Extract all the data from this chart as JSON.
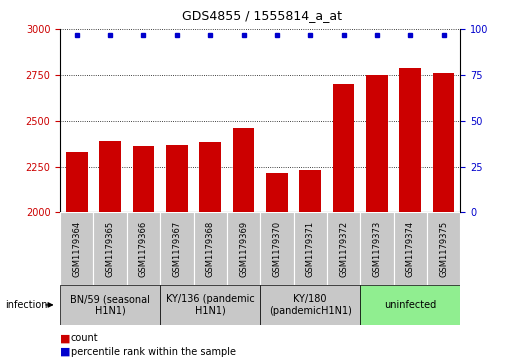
{
  "title": "GDS4855 / 1555814_a_at",
  "samples": [
    "GSM1179364",
    "GSM1179365",
    "GSM1179366",
    "GSM1179367",
    "GSM1179368",
    "GSM1179369",
    "GSM1179370",
    "GSM1179371",
    "GSM1179372",
    "GSM1179373",
    "GSM1179374",
    "GSM1179375"
  ],
  "counts": [
    2330,
    2390,
    2360,
    2370,
    2385,
    2460,
    2215,
    2230,
    2700,
    2750,
    2790,
    2760
  ],
  "percentiles": [
    100,
    100,
    100,
    100,
    100,
    100,
    100,
    100,
    100,
    100,
    100,
    100
  ],
  "ylim_left": [
    2000,
    3000
  ],
  "ylim_right": [
    0,
    100
  ],
  "yticks_left": [
    2000,
    2250,
    2500,
    2750,
    3000
  ],
  "yticks_right": [
    0,
    25,
    50,
    75,
    100
  ],
  "bar_color": "#cc0000",
  "dot_color": "#0000cc",
  "bg_color": "#ffffff",
  "groups": [
    {
      "label": "BN/59 (seasonal\nH1N1)",
      "start": 0,
      "end": 3,
      "color": "#c8c8c8"
    },
    {
      "label": "KY/136 (pandemic\nH1N1)",
      "start": 3,
      "end": 6,
      "color": "#c8c8c8"
    },
    {
      "label": "KY/180\n(pandemicH1N1)",
      "start": 6,
      "end": 9,
      "color": "#c8c8c8"
    },
    {
      "label": "uninfected",
      "start": 9,
      "end": 12,
      "color": "#90ee90"
    }
  ],
  "sample_cell_color": "#c8c8c8",
  "infection_label": "infection",
  "left_label": "count",
  "right_label": "percentile rank within the sample",
  "left_tick_color": "#cc0000",
  "right_tick_color": "#0000cc",
  "title_fontsize": 9,
  "tick_fontsize": 7,
  "sample_fontsize": 6,
  "group_fontsize": 7,
  "legend_fontsize": 7
}
